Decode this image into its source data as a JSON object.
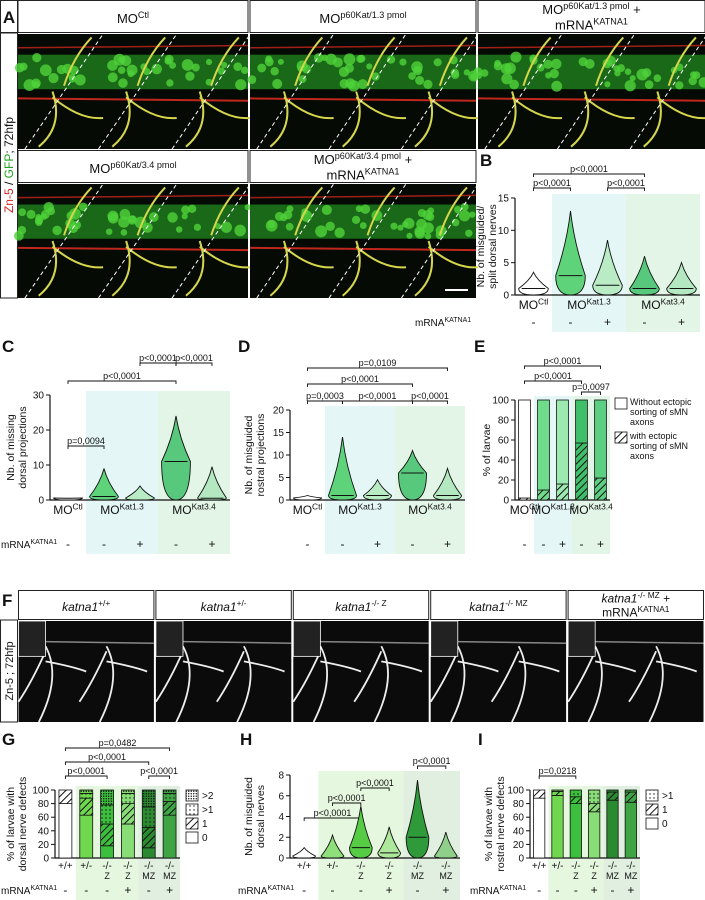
{
  "panel_a": {
    "letter": "A",
    "side_label": [
      "Zn-5",
      " / ",
      "GFP",
      "; 72hfp"
    ],
    "titles": [
      {
        "text": "MO",
        "sup": "Ctl"
      },
      {
        "text": "MO",
        "sup": "p60Kat/1.3 pmol"
      },
      {
        "text": "MO",
        "sup": "p60Kat/1.3 pmol",
        "after": " +",
        "line2": {
          "text": "mRNA",
          "sup": "KATNA1"
        }
      },
      {
        "text": "MO",
        "sup": "p60Kat/3.4 pmol"
      },
      {
        "text": "MO",
        "sup": "p60Kat/3.4 pmol",
        "after": " +",
        "line2": {
          "text": "mRNA",
          "sup": "KATNA1"
        }
      }
    ]
  },
  "panel_f": {
    "letter": "F",
    "side_label": "Zn-5 ; 72hfp",
    "titles": [
      {
        "text": "katna1",
        "sup": "+/+"
      },
      {
        "text": "katna1",
        "sup": "+/-"
      },
      {
        "text": "katna1",
        "sup": "-/- Z"
      },
      {
        "text": "katna1",
        "sup": "-/- MZ"
      },
      {
        "text": "katna1",
        "sup": "-/- MZ",
        "after": " +",
        "line2": {
          "text": "mRNA",
          "sup": "KATNA1"
        }
      }
    ]
  },
  "charts": [
    {
      "letter": "B",
      "type": "violin",
      "ylabel": [
        "Nb. of misguided/",
        "split dorsal nerves"
      ],
      "ylim": [
        0,
        15
      ],
      "yticks": [
        0,
        5,
        10,
        15
      ],
      "group_labels": [
        {
          "text": "MO",
          "sup": "Ctl"
        },
        {
          "text": "MO",
          "sup": "Kat1.3"
        },
        {
          "text": "MO",
          "sup": "Kat3.4"
        }
      ],
      "mrna_label": {
        "text": "mRNA",
        "sup": "KATNA1"
      },
      "mrna": [
        "-",
        "-",
        "+",
        "-",
        "+"
      ],
      "medians": [
        1,
        3,
        1.5,
        1,
        1
      ],
      "maxima": [
        3.5,
        13,
        8.5,
        6,
        5
      ],
      "colors": [
        "#ffffff",
        "#5fd37a",
        "#b9ecc4",
        "#58c97c",
        "#b3e8c0"
      ],
      "annotations": [
        "p<0,0001",
        "p<0,0001",
        "p<0,0001"
      ]
    },
    {
      "letter": "C",
      "type": "violin",
      "ylabel": [
        "Nb. of missing",
        "dorsal projections"
      ],
      "ylim": [
        0,
        30
      ],
      "yticks": [
        0,
        10,
        20,
        30
      ],
      "group_labels": [
        {
          "text": "MO",
          "sup": "Ctl"
        },
        {
          "text": "MO",
          "sup": "Kat1.3"
        },
        {
          "text": "MO",
          "sup": "Kat3.4"
        }
      ],
      "mrna_label": {
        "text": "mRNA",
        "sup": "KATNA1"
      },
      "mrna": [
        "-",
        "-",
        "+",
        "-",
        "+"
      ],
      "medians": [
        0,
        1,
        0,
        11,
        0.5
      ],
      "maxima": [
        0.5,
        9,
        4,
        24,
        9.5
      ],
      "colors": [
        "#ffffff",
        "#5fd37a",
        "#b9ecc4",
        "#58c97c",
        "#b3e8c0"
      ],
      "annotations": [
        "p<0,0001",
        "p<0,0001",
        "p<0,0001",
        "p=0,0094"
      ]
    },
    {
      "letter": "D",
      "type": "violin",
      "ylabel": [
        "Nb. of misguided",
        "rostral projections"
      ],
      "ylim": [
        0,
        20
      ],
      "yticks": [
        0,
        5,
        10,
        15,
        20
      ],
      "group_labels": [
        {
          "text": "MO",
          "sup": "Ctl"
        },
        {
          "text": "MO",
          "sup": "Kat1.3"
        },
        {
          "text": "MO",
          "sup": "Kat3.4"
        }
      ],
      "mrna": [
        "-",
        "-",
        "+",
        "-",
        "+"
      ],
      "medians": [
        0,
        1,
        1,
        6,
        1
      ],
      "maxima": [
        1,
        14,
        4.5,
        11,
        7
      ],
      "colors": [
        "#ffffff",
        "#5fd37a",
        "#b9ecc4",
        "#58c97c",
        "#b3e8c0"
      ],
      "annotations": [
        "p=0,0109",
        "p<0,0001",
        "p=0,0003",
        "p<0,0001",
        "p<0,0001"
      ]
    },
    {
      "letter": "E",
      "type": "stacked_bar",
      "ylabel": [
        "% of larvae"
      ],
      "ylim": [
        0,
        100
      ],
      "yticks": [
        0,
        20,
        40,
        60,
        80,
        100
      ],
      "group_labels": [
        {
          "text": "MO",
          "sup": "Ctl"
        },
        {
          "text": "MO",
          "sup": "Kat1.3"
        },
        {
          "text": "MO",
          "sup": "Kat3.4"
        }
      ],
      "mrna": [
        "-",
        "-",
        "+",
        "-",
        "+"
      ],
      "bar_colors": [
        "#ffffff",
        "#6fdc8c",
        "#9ceab0",
        "#3fbf6a",
        "#5ccf82"
      ],
      "series": [
        {
          "name": "with ectopic sorting of sMN axons",
          "pattern": "hatch",
          "values": [
            2,
            10,
            16,
            57,
            22
          ]
        },
        {
          "name": "Without ectopic sorting of sMN axons",
          "pattern": "none",
          "values": [
            98,
            90,
            84,
            43,
            78
          ]
        }
      ],
      "annotations": [
        "p<0,0001",
        "p<0,0001",
        "p=0,0097"
      ]
    },
    {
      "letter": "G",
      "type": "stacked_bar",
      "ylabel": [
        "% of larvae with",
        "dorsal nerve defects"
      ],
      "ylim": [
        0,
        100
      ],
      "yticks": [
        0,
        20,
        40,
        60,
        80,
        100
      ],
      "categories": [
        "+/+",
        "+/-",
        "-/-",
        "-/-",
        "-/-",
        "-/-"
      ],
      "subs": [
        null,
        null,
        "Z",
        "Z",
        "MZ",
        "MZ"
      ],
      "mrna_label": {
        "text": "mRNA",
        "sup": "KATNA1"
      },
      "mrna": [
        "-",
        "-",
        "-",
        "+",
        "-",
        "+"
      ],
      "bar_colors": [
        "#ffffff",
        "#6fd84f",
        "#3cbf3c",
        "#88dd77",
        "#2a8a30",
        "#3fa544"
      ],
      "series": [
        {
          "name": "0",
          "pattern": "none",
          "values": [
            80,
            63,
            18,
            50,
            15,
            63
          ]
        },
        {
          "name": "1",
          "pattern": "hatch",
          "values": [
            20,
            25,
            32,
            30,
            30,
            20
          ]
        },
        {
          "name": ">1",
          "pattern": "dots",
          "values": [
            0,
            7,
            28,
            15,
            30,
            12
          ]
        },
        {
          "name": ">2",
          "pattern": "dense",
          "values": [
            0,
            5,
            22,
            5,
            25,
            5
          ]
        }
      ],
      "annotations": [
        "p=0,0482",
        "p<0,0001",
        "p<0,0001",
        "p<0,0001"
      ]
    },
    {
      "letter": "H",
      "type": "violin",
      "ylabel": [
        "Nb. of misguided",
        "dorsal nerves"
      ],
      "ylim": [
        0,
        8
      ],
      "yticks": [
        0,
        2,
        4,
        6,
        8
      ],
      "categories": [
        "+/+",
        "+/-",
        "-/-",
        "-/-",
        "-/-",
        "-/-"
      ],
      "subs": [
        null,
        null,
        "Z",
        "Z",
        "MZ",
        "MZ"
      ],
      "mrna_label": {
        "text": "mRNA",
        "sup": "KATNA1"
      },
      "mrna": [
        "-",
        "-",
        "-",
        "+",
        "-",
        "+"
      ],
      "medians": [
        0,
        0,
        1,
        0.5,
        2,
        0
      ],
      "maxima": [
        1,
        2.2,
        5,
        3,
        7.5,
        2.5
      ],
      "colors": [
        "#ffffff",
        "#8fe07a",
        "#55cc44",
        "#aee89c",
        "#2f9a3a",
        "#8fcf8a"
      ],
      "annotations": [
        "p<0,0001",
        "p<0,0001",
        "p<0,0001",
        "p<0,0001"
      ]
    },
    {
      "letter": "I",
      "type": "stacked_bar",
      "ylabel": [
        "% of larvae with",
        "rostral nerve defects"
      ],
      "ylim": [
        0,
        100
      ],
      "yticks": [
        0,
        20,
        40,
        60,
        80,
        100
      ],
      "categories": [
        "+/+",
        "+/-",
        "-/-",
        "-/-",
        "-/-",
        "-/-"
      ],
      "subs": [
        null,
        null,
        "Z",
        "Z",
        "MZ",
        "MZ"
      ],
      "mrna_label": {
        "text": "mRNA",
        "sup": "KATNA1"
      },
      "mrna": [
        "-",
        "-",
        "-",
        "+",
        "-",
        "+"
      ],
      "bar_colors": [
        "#ffffff",
        "#6fd84f",
        "#3cbf3c",
        "#88dd77",
        "#2a8a30",
        "#3fa544"
      ],
      "series": [
        {
          "name": "0",
          "pattern": "none",
          "values": [
            88,
            92,
            80,
            68,
            85,
            82
          ]
        },
        {
          "name": "1",
          "pattern": "hatch",
          "values": [
            12,
            6,
            10,
            12,
            12,
            15
          ]
        },
        {
          "name": ">1",
          "pattern": "dots",
          "values": [
            0,
            2,
            10,
            20,
            3,
            3
          ]
        }
      ],
      "annotations": [
        "p=0,0218"
      ]
    }
  ]
}
